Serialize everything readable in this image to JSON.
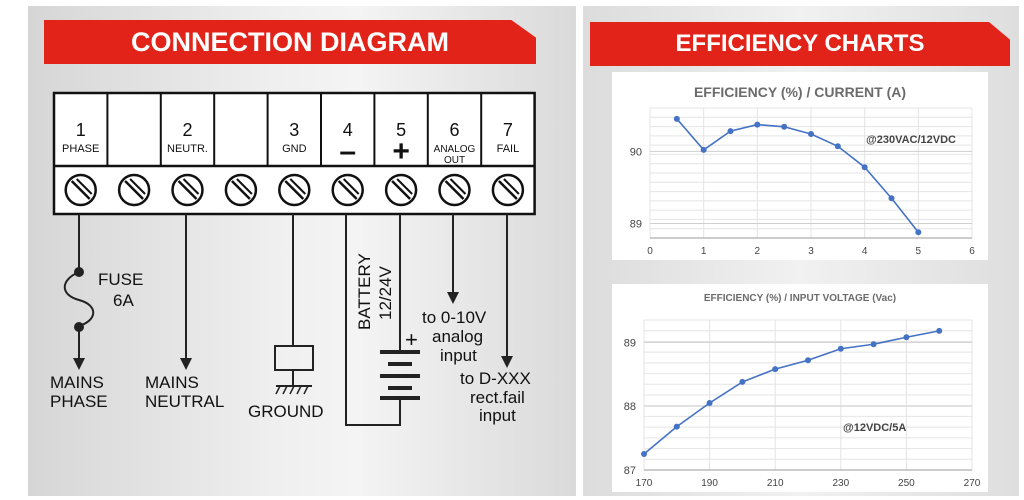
{
  "left_title": "CONNECTION DIAGRAM",
  "right_title": "EFFICIENCY CHARTS",
  "terminals": [
    {
      "num": "1",
      "label": "PHASE"
    },
    {
      "num": "",
      "label": ""
    },
    {
      "num": "2",
      "label": "NEUTR."
    },
    {
      "num": "",
      "label": ""
    },
    {
      "num": "3",
      "label": "GND"
    },
    {
      "num": "4",
      "label": "–"
    },
    {
      "num": "5",
      "label": "+"
    },
    {
      "num": "6",
      "label": "ANALOG\nOUT"
    },
    {
      "num": "7",
      "label": "FAIL"
    }
  ],
  "labels": {
    "fuse": "FUSE",
    "fuse_rating": "6A",
    "mains_phase_1": "MAINS",
    "mains_phase_2": "PHASE",
    "mains_neutral_1": "MAINS",
    "mains_neutral_2": "NEUTRAL",
    "ground": "GROUND",
    "battery_1": "BATTERY",
    "battery_2": "12/24V",
    "battery_plus": "+",
    "analog_1": "to 0-10V",
    "analog_2": "analog",
    "analog_3": "input",
    "fail_1": "to D-XXX",
    "fail_2": "rect.fail",
    "fail_3": "input"
  },
  "chart_data": [
    {
      "type": "line",
      "title": "EFFICIENCY (%) / CURRENT (A)",
      "annotation": "@230VAC/12VDC",
      "x": [
        0.5,
        1,
        1.5,
        2,
        2.5,
        3,
        3.5,
        4,
        4.5,
        5
      ],
      "y": [
        90.45,
        90.02,
        90.28,
        90.37,
        90.34,
        90.24,
        90.07,
        89.78,
        89.35,
        88.88
      ],
      "xlim": [
        0,
        6
      ],
      "ylim": [
        88.8,
        90.6
      ],
      "xticks": [
        "0",
        "1",
        "2",
        "3",
        "4",
        "5",
        "6"
      ],
      "yticks": [
        "89",
        "90"
      ],
      "color": "#4472c4"
    },
    {
      "type": "line",
      "title": "EFFICIENCY (%) / INPUT VOLTAGE (Vac)",
      "annotation": "@12VDC/5A",
      "x": [
        170,
        180,
        190,
        200,
        210,
        220,
        230,
        240,
        250,
        260
      ],
      "y": [
        87.25,
        87.68,
        88.05,
        88.38,
        88.58,
        88.72,
        88.9,
        88.97,
        89.08,
        89.18
      ],
      "xlim": [
        170,
        270
      ],
      "ylim": [
        87,
        89.35
      ],
      "xticks": [
        "170",
        "190",
        "210",
        "230",
        "250",
        "270"
      ],
      "yticks": [
        "87",
        "88",
        "89"
      ],
      "color": "#4472c4"
    }
  ]
}
